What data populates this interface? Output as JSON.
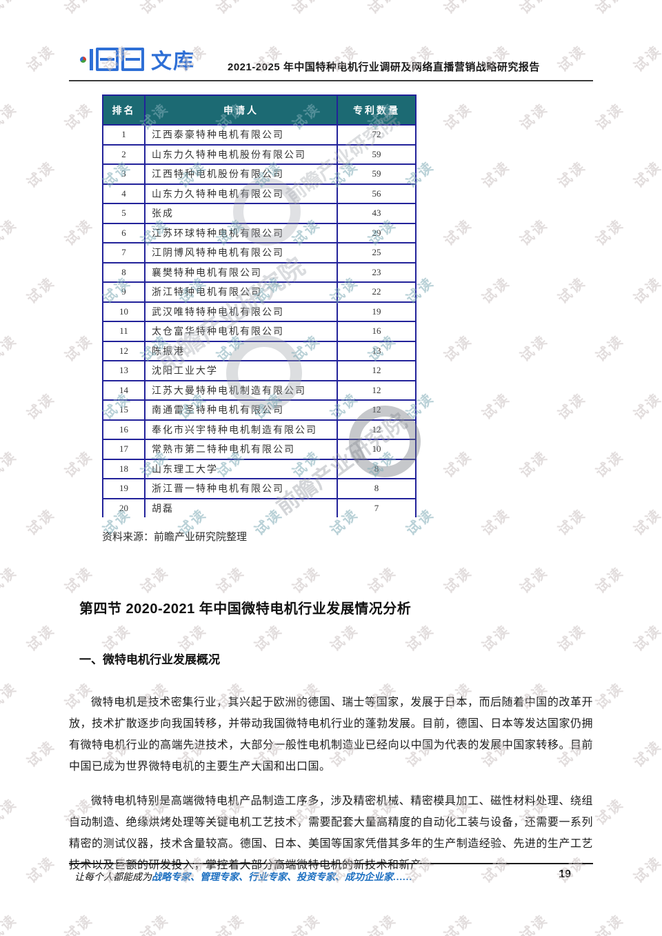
{
  "header": {
    "logo_text": "文库",
    "title": "2021-2025 年中国特种电机行业调研及网络直播营销战略研究报告"
  },
  "table": {
    "columns": [
      "排名",
      "申请人",
      "专利数量"
    ],
    "rows": [
      [
        "1",
        "江西泰豪特种电机有限公司",
        "72"
      ],
      [
        "2",
        "山东力久特种电机股份有限公司",
        "59"
      ],
      [
        "3",
        "江西特种电机股份有限公司",
        "59"
      ],
      [
        "4",
        "山东力久特种电机有限公司",
        "56"
      ],
      [
        "5",
        "张成",
        "43"
      ],
      [
        "6",
        "江苏环球特种电机有限公司",
        "29"
      ],
      [
        "7",
        "江阴博风特种电机有限公司",
        "25"
      ],
      [
        "8",
        "襄樊特种电机有限公司",
        "23"
      ],
      [
        "9",
        "浙江特种电机有限公司",
        "22"
      ],
      [
        "10",
        "武汉唯特特种电机有限公司",
        "19"
      ],
      [
        "11",
        "太仓富华特种电机有限公司",
        "16"
      ],
      [
        "12",
        "陈振港",
        "13"
      ],
      [
        "13",
        "沈阳工业大学",
        "12"
      ],
      [
        "14",
        "江苏大曼特种电机制造有限公司",
        "12"
      ],
      [
        "15",
        "南通雷圣特种电机有限公司",
        "12"
      ],
      [
        "16",
        "奉化市兴宇特种电机制造有限公司",
        "12"
      ],
      [
        "17",
        "常熟市第二特种电机有限公司",
        "10"
      ],
      [
        "18",
        "山东理工大学",
        "8"
      ],
      [
        "19",
        "浙江晋一特种电机有限公司",
        "8"
      ],
      [
        "20",
        "胡磊",
        "7"
      ]
    ]
  },
  "source_note": "资料来源：前瞻产业研究院整理",
  "section": {
    "heading": "第四节 2020-2021 年中国微特电机行业发展情况分析",
    "subheading": "一、微特电机行业发展概况",
    "paragraph1": "微特电机是技术密集行业，其兴起于欧洲的德国、瑞士等国家，发展于日本，而后随着中国的改革开放，技术扩散逐步向我国转移，并带动我国微特电机行业的蓬勃发展。目前，德国、日本等发达国家仍拥有微特电机行业的高端先进技术，大部分一般性电机制造业已经向以中国为代表的发展中国家转移。目前中国已成为世界微特电机的主要生产大国和出口国。",
    "paragraph2": "微特电机特别是高端微特电机产品制造工序多，涉及精密机械、精密模具加工、磁性材料处理、绕组自动制造、绝缘烘烤处理等关键电机工艺技术，需要配套大量高精度的自动化工装与设备，还需要一系列精密的测试仪器，技术含量较高。德国、日本、美国等国家凭借其多年的生产制造经验、先进的生产工艺技术以及巨额的研发投入，掌控着大部分高端微特电机的新技术和新产"
  },
  "footer": {
    "slogan_prefix": "让每个人都能成为",
    "slogan_highlight": "战略专家、管理专家、行业专家、投资专家、成功企业家……",
    "page_number": "19"
  },
  "watermark": {
    "text": "试读",
    "logo_text": "前瞻产业研究院"
  },
  "colors": {
    "logo_blue": "#2E6FD6",
    "table_header_bg": "#1C6A73",
    "table_border": "#22229A",
    "footer_blue": "#1C6FC0",
    "watermark_gray": "#CBC1C1",
    "watermark_teal": "#80ACB6"
  }
}
